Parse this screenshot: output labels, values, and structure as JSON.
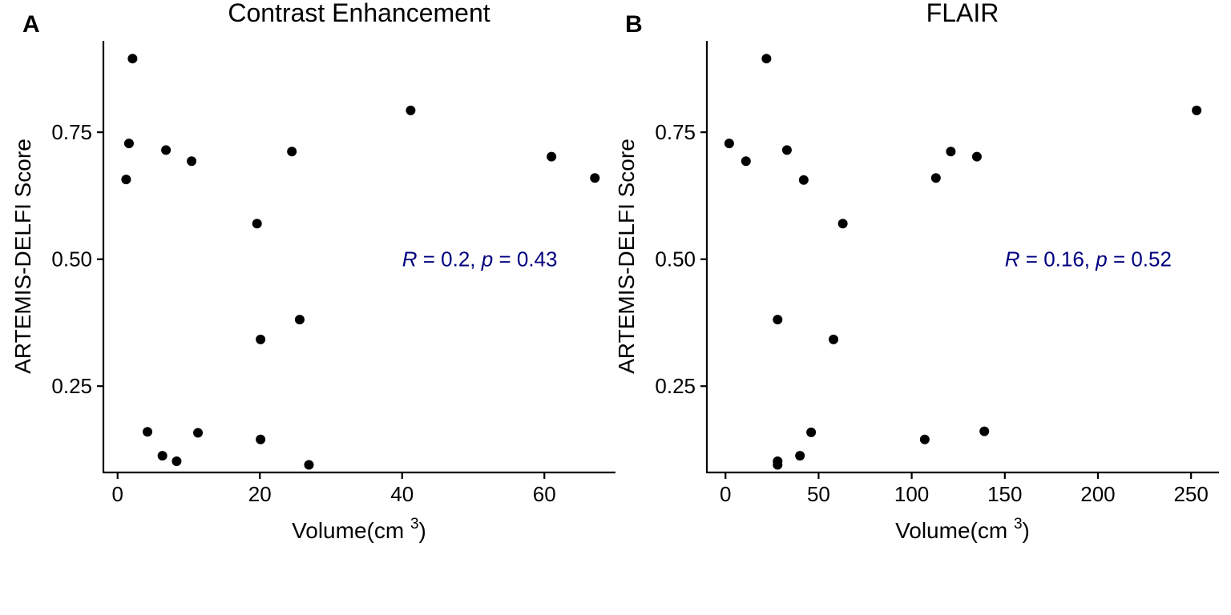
{
  "figure": {
    "panels": [
      {
        "label": "A",
        "title": "Contrast Enhancement"
      },
      {
        "label": "B",
        "title": "FLAIR"
      }
    ]
  },
  "chart_data": [
    {
      "type": "scatter",
      "panel_label": "A",
      "title": "Contrast Enhancement",
      "xlabel": "Volume(cm³)",
      "ylabel": "ARTEMIS-DELFI Score",
      "xlim": [
        -2,
        70
      ],
      "ylim": [
        0.08,
        0.93
      ],
      "xticks": [
        0,
        20,
        40,
        60
      ],
      "yticks": [
        0.25,
        0.5,
        0.75
      ],
      "ytick_labels": [
        "0.25",
        "0.50",
        "0.75"
      ],
      "grid": false,
      "point_color": "#000000",
      "annotation": {
        "r_label": "R",
        "r_value": " = 0.2, ",
        "p_label": "p",
        "p_value": " = 0.43",
        "x": 40,
        "y": 0.5,
        "color": "#000080"
      },
      "points": [
        {
          "x": 2.1,
          "y": 0.895
        },
        {
          "x": 1.6,
          "y": 0.728
        },
        {
          "x": 1.2,
          "y": 0.657
        },
        {
          "x": 6.8,
          "y": 0.715
        },
        {
          "x": 10.4,
          "y": 0.693
        },
        {
          "x": 24.5,
          "y": 0.712
        },
        {
          "x": 41.2,
          "y": 0.793
        },
        {
          "x": 19.6,
          "y": 0.57
        },
        {
          "x": 25.6,
          "y": 0.381
        },
        {
          "x": 20.1,
          "y": 0.342
        },
        {
          "x": 4.2,
          "y": 0.16
        },
        {
          "x": 11.3,
          "y": 0.158
        },
        {
          "x": 6.3,
          "y": 0.113
        },
        {
          "x": 8.3,
          "y": 0.102
        },
        {
          "x": 20.1,
          "y": 0.145
        },
        {
          "x": 26.9,
          "y": 0.095
        },
        {
          "x": 61.0,
          "y": 0.702
        },
        {
          "x": 67.1,
          "y": 0.66
        }
      ]
    },
    {
      "type": "scatter",
      "panel_label": "B",
      "title": "FLAIR",
      "xlabel": "Volume(cm³)",
      "ylabel": "ARTEMIS-DELFI Score",
      "xlim": [
        -10,
        265
      ],
      "ylim": [
        0.08,
        0.93
      ],
      "xticks": [
        0,
        50,
        100,
        150,
        200,
        250
      ],
      "yticks": [
        0.25,
        0.5,
        0.75
      ],
      "ytick_labels": [
        "0.25",
        "0.50",
        "0.75"
      ],
      "grid": false,
      "point_color": "#000000",
      "annotation": {
        "r_label": "R",
        "r_value": " = 0.16, ",
        "p_label": "p",
        "p_value": " = 0.52",
        "x": 150,
        "y": 0.5,
        "color": "#000080"
      },
      "points": [
        {
          "x": 22,
          "y": 0.895
        },
        {
          "x": 2,
          "y": 0.728
        },
        {
          "x": 11,
          "y": 0.693
        },
        {
          "x": 33,
          "y": 0.715
        },
        {
          "x": 42,
          "y": 0.656
        },
        {
          "x": 63,
          "y": 0.57
        },
        {
          "x": 28,
          "y": 0.381
        },
        {
          "x": 58,
          "y": 0.342
        },
        {
          "x": 46,
          "y": 0.159
        },
        {
          "x": 28,
          "y": 0.102
        },
        {
          "x": 28,
          "y": 0.095
        },
        {
          "x": 40,
          "y": 0.113
        },
        {
          "x": 107,
          "y": 0.145
        },
        {
          "x": 139,
          "y": 0.161
        },
        {
          "x": 113,
          "y": 0.66
        },
        {
          "x": 121,
          "y": 0.712
        },
        {
          "x": 135,
          "y": 0.702
        },
        {
          "x": 253,
          "y": 0.793
        }
      ]
    }
  ]
}
